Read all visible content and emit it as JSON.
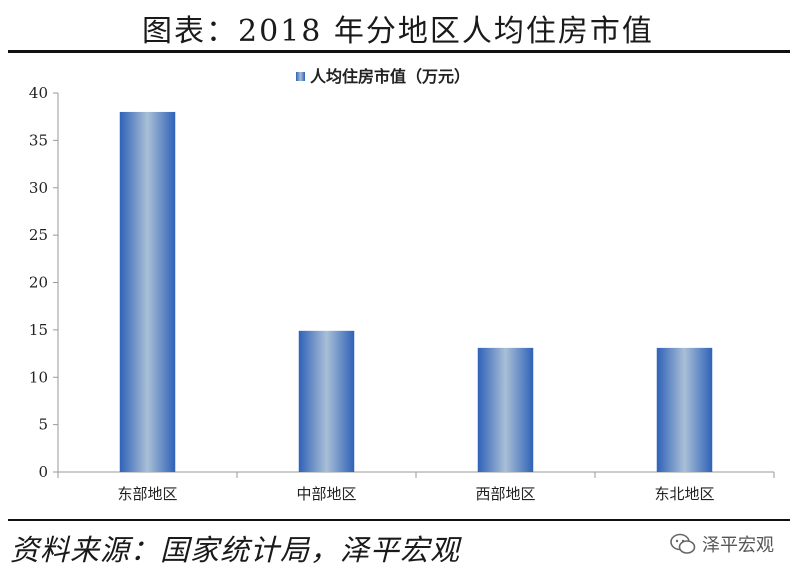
{
  "title": "图表：2018 年分地区人均住房市值",
  "source": "资料来源：国家统计局，泽平宏观",
  "watermark": "泽平宏观",
  "colors": {
    "bar_edge": "#2f62b8",
    "bar_center": "#a9bfd6",
    "axis": "#9a9a9a"
  },
  "chart_data": {
    "type": "bar",
    "title": "",
    "xlabel": "",
    "ylabel": "",
    "ylim": [
      0,
      40
    ],
    "yticks": [
      0,
      5,
      10,
      15,
      20,
      25,
      30,
      35,
      40
    ],
    "categories": [
      "东部地区",
      "中部地区",
      "西部地区",
      "东北地区"
    ],
    "series": [
      {
        "name": "人均住房市值（万元）",
        "values": [
          38,
          14.9,
          13.1,
          13.1
        ]
      }
    ],
    "legend": "top-center",
    "grid": false
  }
}
